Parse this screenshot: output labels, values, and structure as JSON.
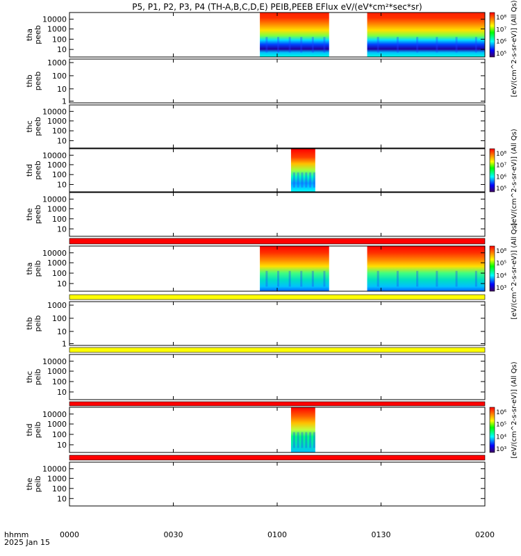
{
  "title": "P5, P1, P2, P3, P4 (TH-A,B,C,D,E) PEIB,PEEB EFlux eV/(eV*cm²*sec*sr)",
  "time_axis": {
    "label_line1": "hhmm",
    "label_line2": "2025 Jan 15",
    "ticks": [
      {
        "label": "0000",
        "minutes": 0
      },
      {
        "label": "0030",
        "minutes": 30
      },
      {
        "label": "0100",
        "minutes": 60
      },
      {
        "label": "0130",
        "minutes": 90
      },
      {
        "label": "0200",
        "minutes": 120
      }
    ]
  },
  "colorbars": {
    "electron": {
      "label": "[eV/(cm^2-s-sr-eV)] (All Qs)",
      "ticks": [
        "10⁸",
        "10⁷",
        "10⁶",
        "10⁵"
      ]
    },
    "ion": {
      "label": "[eV/(cm^2-s-sr-eV)] (All Qs)",
      "ticks": [
        "10⁸",
        "10⁵",
        "10⁴",
        "10³"
      ]
    },
    "ion_small": {
      "ticks": [
        "10⁶",
        "10⁵",
        "10⁴",
        "10³"
      ]
    }
  },
  "chart_data": [
    {
      "type": "heatmap",
      "probe": "tha",
      "product": "peeb",
      "ylabel": [
        "tha",
        "peeb"
      ],
      "yticks": [
        "10000",
        "1000",
        "100",
        "10"
      ],
      "data_intervals_minutes": [
        [
          55,
          75
        ],
        [
          86,
          120
        ]
      ]
    },
    {
      "type": "heatmap",
      "probe": "thb",
      "product": "peeb",
      "ylabel": [
        "thb",
        "peeb"
      ],
      "yticks": [
        "1000",
        "100",
        "10",
        "1"
      ],
      "data_intervals_minutes": []
    },
    {
      "type": "heatmap",
      "probe": "thc",
      "product": "peeb",
      "ylabel": [
        "thc",
        "peeb"
      ],
      "yticks": [
        "10000",
        "1000",
        "100",
        "10"
      ],
      "data_intervals_minutes": []
    },
    {
      "type": "heatmap",
      "probe": "thd",
      "product": "peeb",
      "ylabel": [
        "thd",
        "peeb"
      ],
      "yticks": [
        "10000",
        "1000",
        "100",
        "10"
      ],
      "data_intervals_minutes": [
        [
          64,
          71
        ]
      ]
    },
    {
      "type": "heatmap",
      "probe": "the",
      "product": "peeb",
      "ylabel": [
        "the",
        "peeb"
      ],
      "yticks": [
        "10000",
        "1000",
        "100",
        "10"
      ],
      "data_intervals_minutes": []
    },
    {
      "type": "heatmap",
      "probe": "tha",
      "product": "peib",
      "ylabel": [
        "tha",
        "peib"
      ],
      "yticks": [
        "10000",
        "1000",
        "100",
        "10"
      ],
      "data_intervals_minutes": [
        [
          55,
          75
        ],
        [
          86,
          120
        ]
      ]
    },
    {
      "type": "heatmap",
      "probe": "thb",
      "product": "peib",
      "ylabel": [
        "thb",
        "peib"
      ],
      "yticks": [
        "1000",
        "100",
        "10",
        "1"
      ],
      "data_intervals_minutes": []
    },
    {
      "type": "heatmap",
      "probe": "thc",
      "product": "peib",
      "ylabel": [
        "thc",
        "peib"
      ],
      "yticks": [
        "10000",
        "1000",
        "100",
        "10"
      ],
      "data_intervals_minutes": []
    },
    {
      "type": "heatmap",
      "probe": "thd",
      "product": "peib",
      "ylabel": [
        "thd",
        "peib"
      ],
      "yticks": [
        "10000",
        "1000",
        "100",
        "10"
      ],
      "data_intervals_minutes": [
        [
          64,
          71
        ]
      ]
    },
    {
      "type": "heatmap",
      "probe": "the",
      "product": "peib",
      "ylabel": [
        "the",
        "peib"
      ],
      "yticks": [
        "10000",
        "1000",
        "100",
        "10"
      ],
      "data_intervals_minutes": []
    }
  ],
  "colors": {
    "red_bar": "#ff0000",
    "yellow_bar": "#ffff00",
    "dark_red": "#8b0000",
    "orange": "#ff8000",
    "green": "#00ff80",
    "cyan": "#00ffff",
    "blue": "#0000ff",
    "purple": "#400080"
  }
}
